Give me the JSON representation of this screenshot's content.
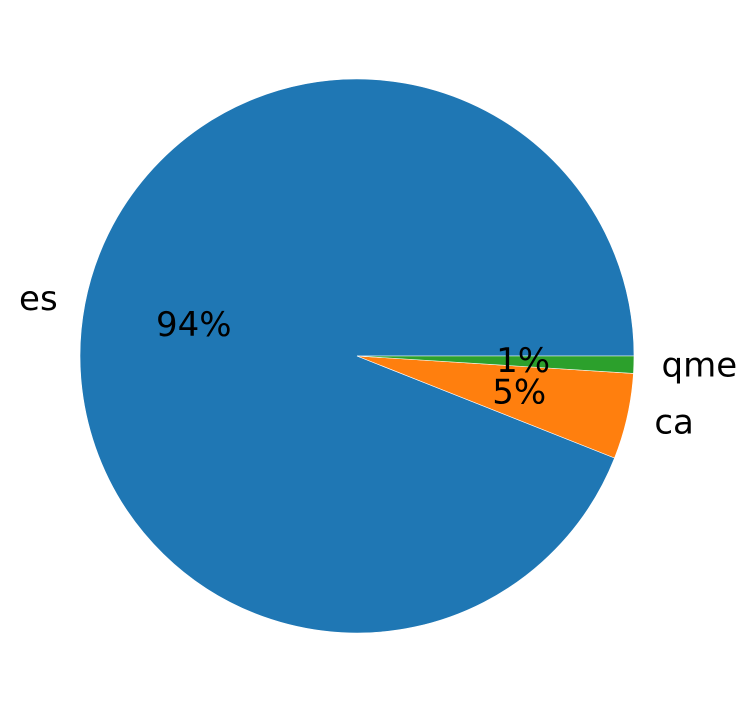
{
  "chart_data": {
    "type": "pie",
    "title": "",
    "slices": [
      {
        "label": "es",
        "value": 94,
        "pct_label": "94%",
        "color": "#1f77b4"
      },
      {
        "label": "ca",
        "value": 5,
        "pct_label": "5%",
        "color": "#ff7f0e"
      },
      {
        "label": "qme",
        "value": 1,
        "pct_label": "1%",
        "color": "#2ca02c"
      }
    ],
    "start_angle_deg": 0,
    "direction": "counterclockwise",
    "legend": "none"
  }
}
